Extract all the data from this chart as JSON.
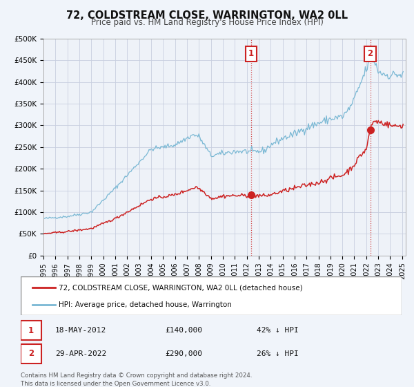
{
  "title": "72, COLDSTREAM CLOSE, WARRINGTON, WA2 0LL",
  "subtitle": "Price paid vs. HM Land Registry's House Price Index (HPI)",
  "ylabel_ticks": [
    "£0",
    "£50K",
    "£100K",
    "£150K",
    "£200K",
    "£250K",
    "£300K",
    "£350K",
    "£400K",
    "£450K",
    "£500K"
  ],
  "ytick_values": [
    0,
    50000,
    100000,
    150000,
    200000,
    250000,
    300000,
    350000,
    400000,
    450000,
    500000
  ],
  "xlim_start": 1995.0,
  "xlim_end": 2025.3,
  "ylim": [
    0,
    500000
  ],
  "hpi_color": "#7ab8d4",
  "price_color": "#cc2222",
  "annotation_box_color": "#cc2222",
  "sale1_x": 2012.38,
  "sale1_price": 140000,
  "sale1_label": "1",
  "sale1_date": "18-MAY-2012",
  "sale1_pct": "42% ↓ HPI",
  "sale2_x": 2022.33,
  "sale2_price": 290000,
  "sale2_label": "2",
  "sale2_date": "29-APR-2022",
  "sale2_pct": "26% ↓ HPI",
  "legend_line1": "72, COLDSTREAM CLOSE, WARRINGTON, WA2 0LL (detached house)",
  "legend_line2": "HPI: Average price, detached house, Warrington",
  "footnote": "Contains HM Land Registry data © Crown copyright and database right 2024.\nThis data is licensed under the Open Government Licence v3.0.",
  "background_color": "#f0f4fa",
  "plot_bg_color": "#eef2f8",
  "grid_color": "#c8cfe0"
}
